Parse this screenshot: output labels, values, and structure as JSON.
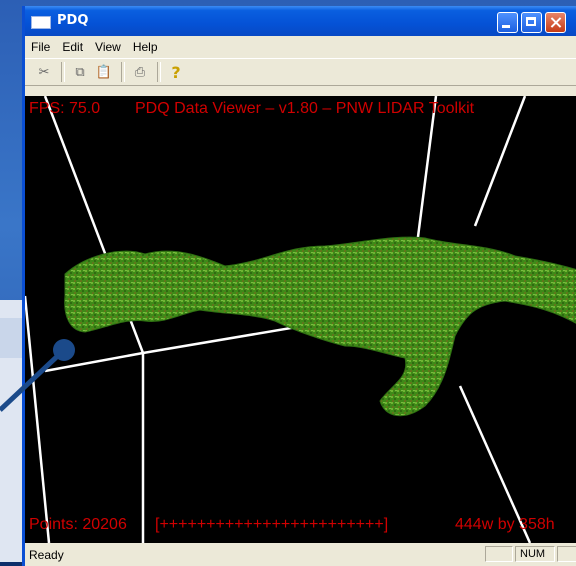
{
  "window": {
    "title": "PDQ",
    "menu": [
      "File",
      "Edit",
      "View",
      "Help"
    ],
    "toolbar_icons": [
      "cut-icon",
      "copy-icon",
      "paste-icon",
      "print-icon",
      "help-icon"
    ]
  },
  "viewport": {
    "fps_text": "FPS: 75.0",
    "title_text": "PDQ Data Viewer – v1.80 – PNW LIDAR Toolkit",
    "points_text": "Points: 20206",
    "progress_text": "[++++++++++++++++++++++++]",
    "size_text": "444w by 358h"
  },
  "status": {
    "ready": "Ready",
    "panel_num": "NUM"
  },
  "colors": {
    "hud_text": "#d00000",
    "point_cloud": "#4a9a1e",
    "titlebar": "#0552d6"
  }
}
